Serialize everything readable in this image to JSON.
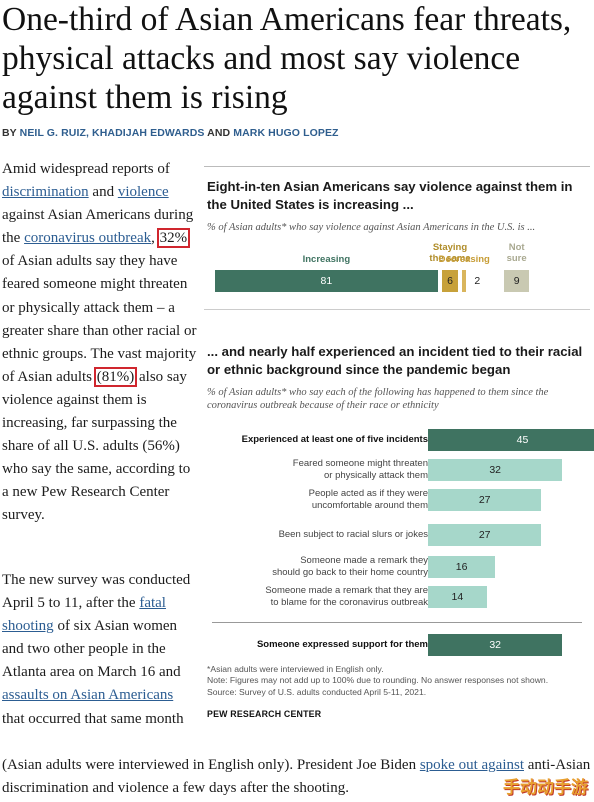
{
  "headline": "One-third of Asian Americans fear threats, physical attacks and most say violence against them is rising",
  "byline": {
    "by": "BY",
    "author1": "NEIL G. RUIZ,",
    "author2": "KHADIJAH EDWARDS",
    "and": "AND",
    "author3": "MARK HUGO LOPEZ"
  },
  "para1": {
    "t1": "Amid widespread reports of ",
    "link_discrimination": "discrimination",
    "t2": " and ",
    "link_violence": "violence",
    "t3": " against Asian Americans during the ",
    "link_coronavirus": "coronavirus outbreak",
    "t4": ", ",
    "hl1": "32%",
    "t5": " of Asian adults say they have feared someone might threaten or physically attack them – a greater share than other racial or ethnic groups. The vast majority of Asian adults ",
    "hl2": "(81%)",
    "t6": " also say violence against them is increasing, far surpassing the share of all U.S. adults (56%) who say the same, according to a new Pew Research Center survey."
  },
  "para2": {
    "t1": "The new survey was conducted April 5 to 11, after the ",
    "link_shooting": "fatal shooting",
    "t2": " of six Asian women and two other people in the Atlanta area on March 16 and ",
    "link_assaults": "assaults on Asian Americans",
    "t3": " that occurred that same month"
  },
  "para3": {
    "t1": "(Asian adults were interviewed in English only). President Joe Biden ",
    "link_spoke": "spoke out against",
    "t2": " anti-Asian discrimination and violence a few days after the shooting."
  },
  "chart_data": [
    {
      "type": "bar",
      "stacked": true,
      "title": "Eight-in-ten Asian Americans say violence against them in the United States is increasing ...",
      "subtitle": "% of Asian adults* who say violence against Asian Americans in the U.S. is ...",
      "categories": [
        "Increasing",
        "Staying the same",
        "Decreasing",
        "Not sure"
      ],
      "values": [
        81,
        6,
        2,
        9
      ],
      "value_labels": [
        "81",
        "6",
        "2",
        "9"
      ],
      "label_lines": [
        [
          "Increasing"
        ],
        [
          "Staying",
          "the same"
        ],
        [
          "Decreasing"
        ],
        [
          "Not",
          "sure"
        ]
      ],
      "colors": [
        "#3f7361",
        "#c7a13a",
        "#d9b55c",
        "#c9c9b2"
      ],
      "label_colors": [
        "#3f7361",
        "#b08d2a",
        "#c79d36",
        "#a9a991"
      ]
    },
    {
      "type": "bar",
      "orientation": "horizontal",
      "title": "... and nearly half experienced an incident tied to their racial or ethnic background since the pandemic began",
      "subtitle": "% of Asian adults* who say each of the following has happened to them since the coronavirus outbreak because of their race or ethnicity",
      "categories": [
        "Experienced at least one of five incidents",
        "Feared someone might threaten or physically attack them",
        "People acted as if they were uncomfortable around them",
        "Been subject to racial slurs or jokes",
        "Someone made a remark they should go back to their home country",
        "Someone made a remark that they are to blame for the coronavirus outbreak",
        "Someone expressed support for them"
      ],
      "label_lines": [
        [
          "Experienced at least one of five incidents"
        ],
        [
          "Feared someone might threaten",
          "or physically attack them"
        ],
        [
          "People acted as if they were",
          "uncomfortable around them"
        ],
        [
          "Been subject to racial slurs or jokes"
        ],
        [
          "Someone made a remark they",
          "should go back to their home country"
        ],
        [
          "Someone made a remark that they are",
          "to blame for the coronavirus outbreak"
        ],
        [
          "Someone expressed support for them"
        ]
      ],
      "values": [
        45,
        32,
        27,
        27,
        16,
        14,
        32
      ],
      "value_labels": [
        "45",
        "32",
        "27",
        "27",
        "16",
        "14",
        "32"
      ],
      "colors": [
        "#3f7361",
        "#a6d7ca",
        "#a6d7ca",
        "#a6d7ca",
        "#a6d7ca",
        "#a6d7ca",
        "#3f7361"
      ]
    }
  ],
  "notes": {
    "n1": "*Asian adults were interviewed in English only.",
    "n2": "Note: Figures may not add up to 100% due to rounding. No answer responses not shown.",
    "n3": "Source: Survey of U.S. adults conducted April 5-11, 2021.",
    "brand": "PEW RESEARCH CENTER"
  },
  "watermark": "手动动手游"
}
